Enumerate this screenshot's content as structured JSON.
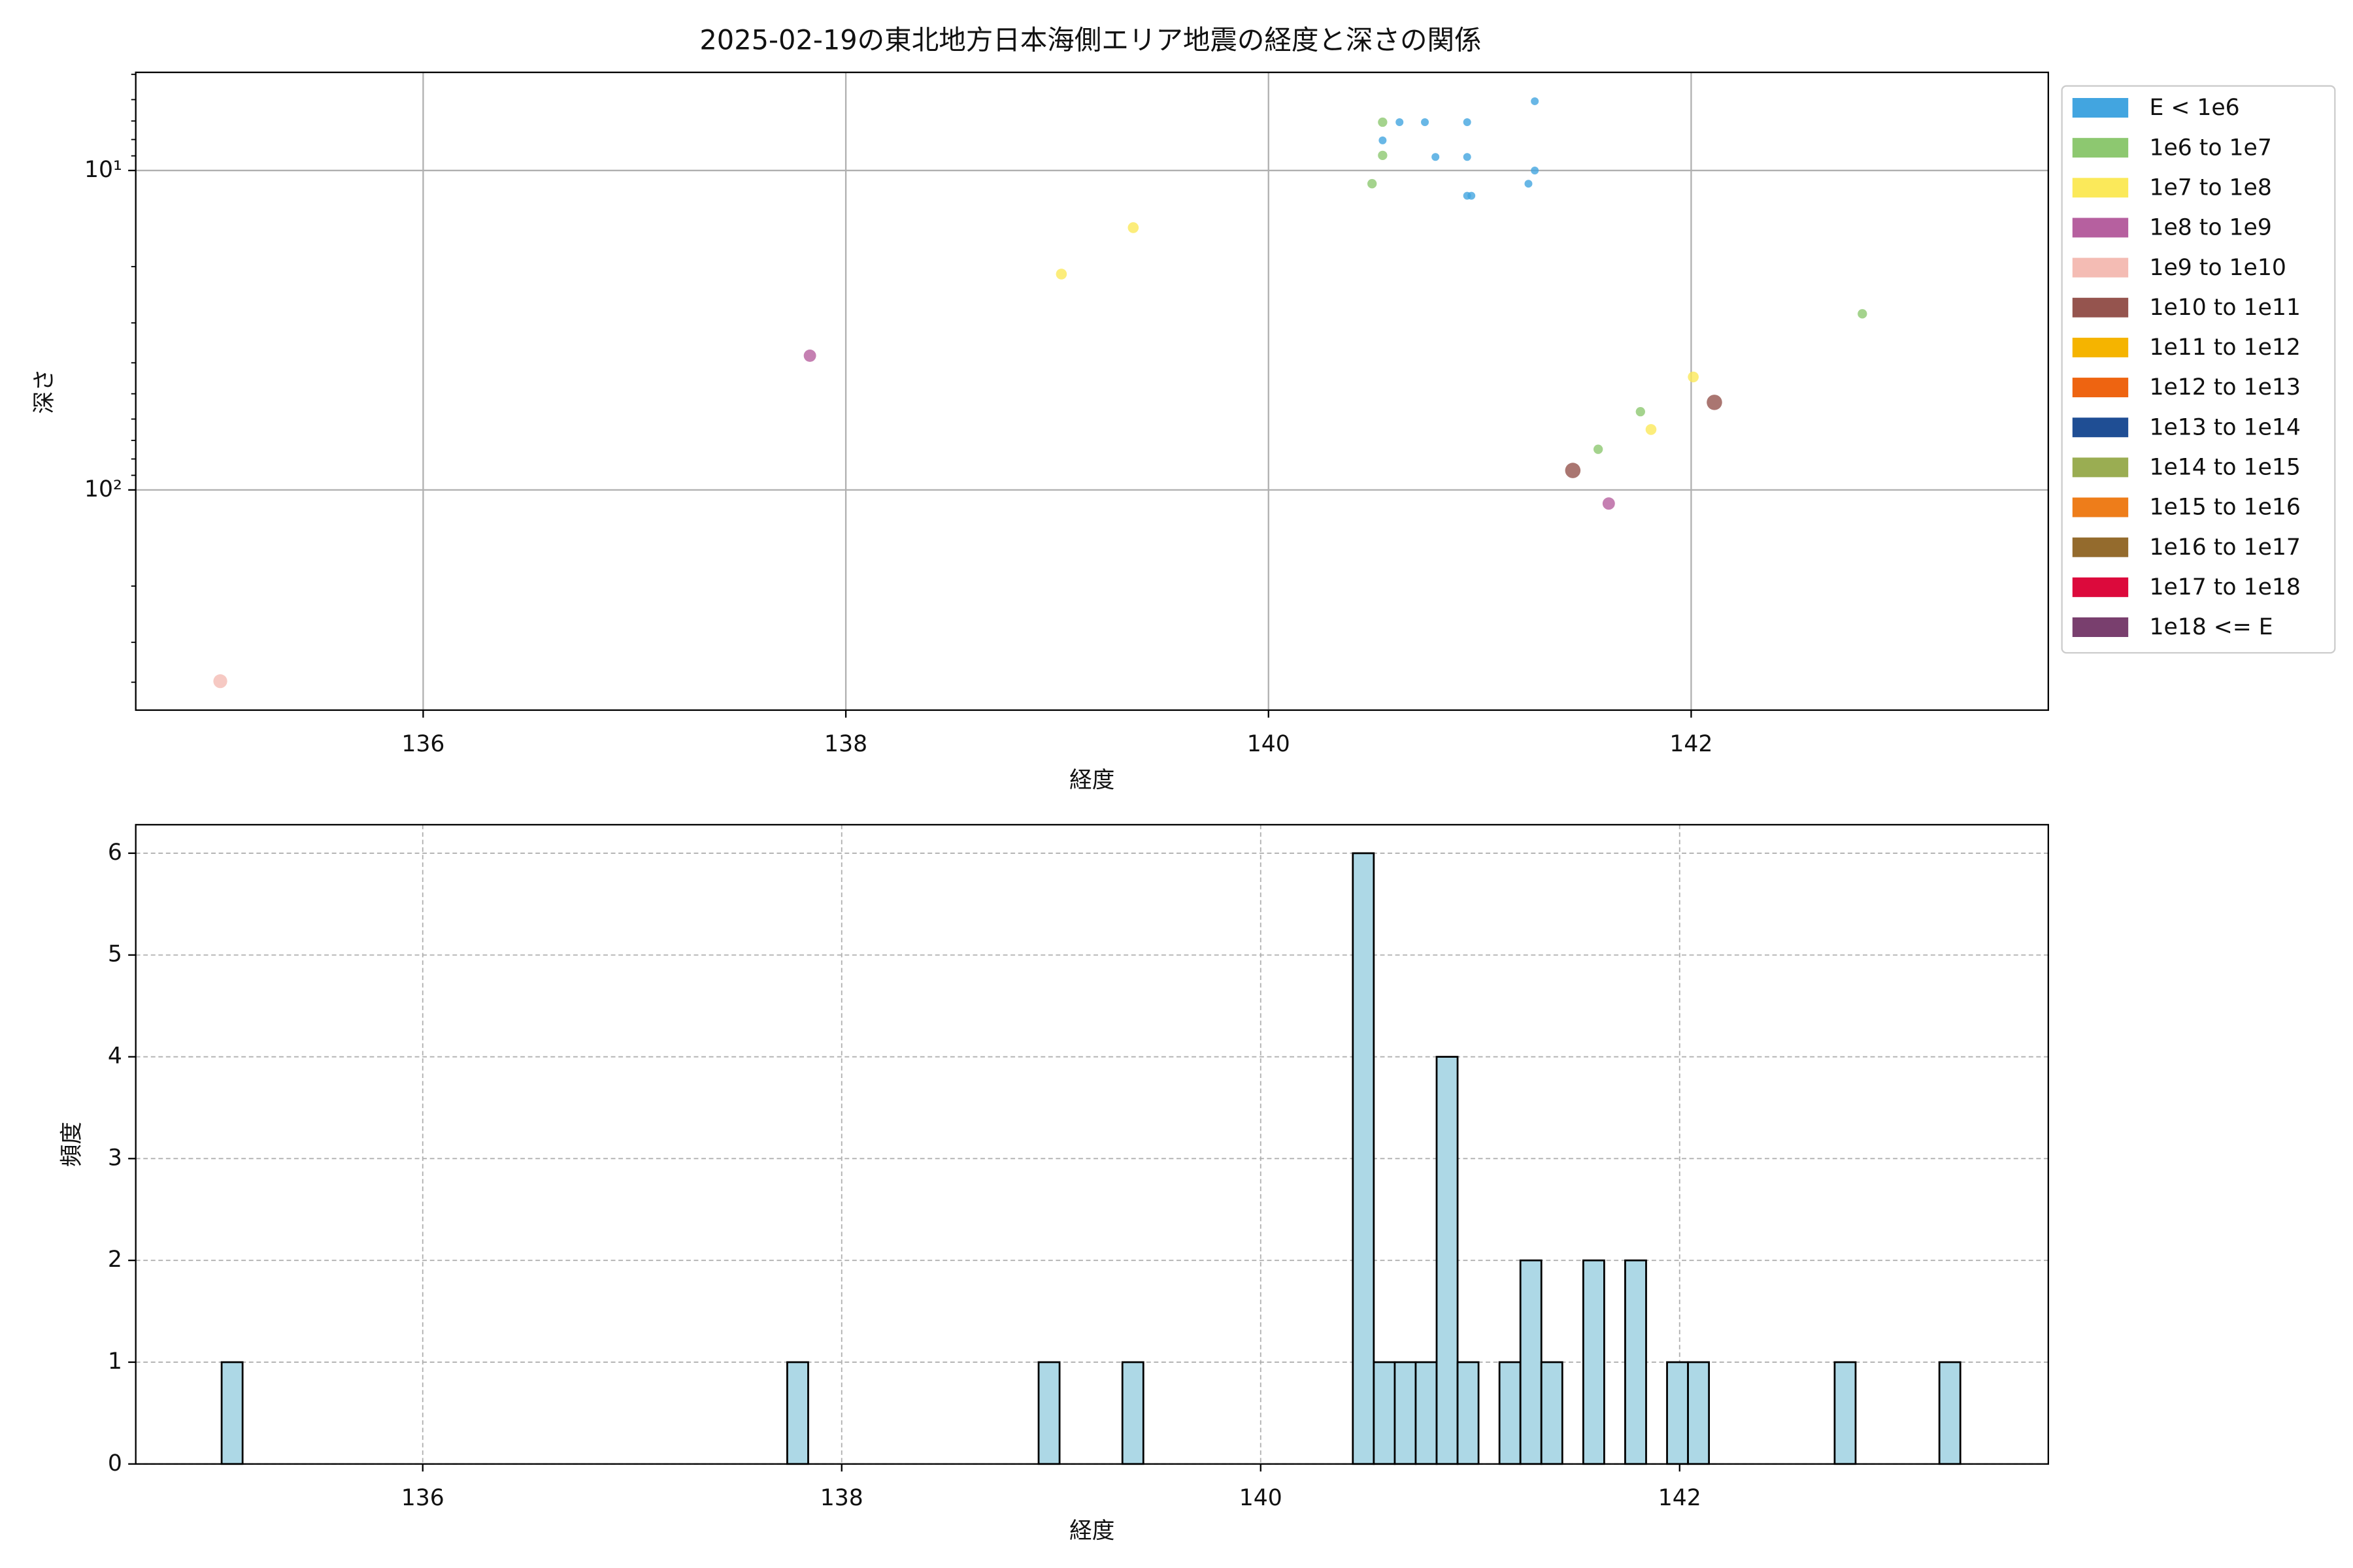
{
  "chart_data": [
    {
      "type": "scatter",
      "title": "2025-02-19の東北地方日本海側エリア地震の経度と深さの関係",
      "xlabel": "経度",
      "ylabel": "深さ",
      "xlim": [
        134.64,
        143.69
      ],
      "xticks": [
        136,
        138,
        140,
        142
      ],
      "ylim": [
        4.93,
        489
      ],
      "yscale": "log",
      "y_inverted": true,
      "yticks": [
        {
          "value": 10,
          "label": "10¹"
        },
        {
          "value": 100,
          "label": "10²"
        }
      ],
      "grid": true,
      "legend": "outside right",
      "series": [
        {
          "name": "E < 1e6",
          "color": "#42a5e0",
          "x": [
            140.62,
            140.74,
            140.94,
            141.26,
            140.54,
            140.79,
            140.94,
            141.26,
            141.23,
            140.94,
            140.96
          ],
          "values": [
            7.06,
            7.06,
            7.06,
            6.07,
            8.05,
            9.07,
            9.07,
            10,
            11.0,
            12.0,
            12.0
          ]
        },
        {
          "name": "1e6 to 1e7",
          "color": "#8dc870",
          "x": [
            140.54,
            140.54,
            140.49,
            142.81,
            141.76,
            141.56
          ],
          "values": [
            7.06,
            8.97,
            11.0,
            28.1,
            56.9,
            74.6
          ]
        },
        {
          "name": "1e7 to 1e8",
          "color": "#fbe95a",
          "x": [
            139.36,
            139.02,
            142.01,
            141.81
          ],
          "values": [
            15.1,
            21.1,
            44.3,
            64.7
          ]
        },
        {
          "name": "1e8 to 1e9",
          "color": "#b6609f",
          "x": [
            137.83,
            141.61
          ],
          "values": [
            38.0,
            110.3
          ]
        },
        {
          "name": "1e9 to 1e10",
          "color": "#f4bcb4",
          "x": [
            135.04
          ],
          "values": [
            397
          ]
        },
        {
          "name": "1e10 to 1e11",
          "color": "#95544e",
          "x": [
            141.44,
            142.11
          ],
          "values": [
            86.9,
            53.2
          ]
        },
        {
          "name": "1e11 to 1e12",
          "color": "#f5b400",
          "x": [],
          "values": []
        },
        {
          "name": "1e12 to 1e13",
          "color": "#ee6411",
          "x": [],
          "values": []
        },
        {
          "name": "1e13 to 1e14",
          "color": "#1f4e94",
          "x": [],
          "values": []
        },
        {
          "name": "1e14 to 1e15",
          "color": "#9aad52",
          "x": [],
          "values": []
        },
        {
          "name": "1e15 to 1e16",
          "color": "#ee7d1a",
          "x": [],
          "values": []
        },
        {
          "name": "1e16 to 1e17",
          "color": "#946b2d",
          "x": [],
          "values": []
        },
        {
          "name": "1e17 to 1e18",
          "color": "#dc0a3c",
          "x": [],
          "values": []
        },
        {
          "name": "1e18 <= E",
          "color": "#793f6e",
          "x": [],
          "values": []
        }
      ]
    },
    {
      "type": "histogram",
      "xlabel": "経度",
      "ylabel": "頻度",
      "xlim": [
        134.63,
        143.76
      ],
      "xticks": [
        136,
        138,
        140,
        142
      ],
      "ylim": [
        0,
        6.28
      ],
      "yticks": [
        0,
        1,
        2,
        3,
        4,
        5,
        6
      ],
      "grid": "dashed",
      "color": "#add8e6",
      "edgecolor": "#000000",
      "bins": [
        135.04,
        135.14,
        135.24,
        135.34,
        135.44,
        135.54,
        135.64,
        135.74,
        135.84,
        135.94,
        136.04,
        136.14,
        136.24,
        136.34,
        136.44,
        136.54,
        136.64,
        136.74,
        136.84,
        136.94,
        137.04,
        137.14,
        137.24,
        137.34,
        137.44,
        137.54,
        137.64,
        137.74,
        137.84,
        137.94,
        138.04,
        138.14,
        138.24,
        138.34,
        138.44,
        138.54,
        138.64,
        138.74,
        138.84,
        138.94,
        139.04,
        139.14,
        139.24,
        139.34,
        139.44,
        139.54,
        139.64,
        139.74,
        139.84,
        139.94,
        140.04,
        140.14,
        140.24,
        140.34,
        140.44,
        140.54,
        140.64,
        140.74,
        140.84,
        140.94,
        141.04,
        141.14,
        141.24,
        141.34,
        141.44,
        141.54,
        141.64,
        141.74,
        141.84,
        141.94,
        142.04,
        142.14,
        142.24,
        142.34,
        142.44,
        142.54,
        142.64,
        142.74,
        142.84,
        142.94,
        143.04,
        143.14,
        143.24,
        143.34
      ],
      "values": [
        1,
        0,
        0,
        0,
        0,
        0,
        0,
        0,
        0,
        0,
        0,
        0,
        0,
        0,
        0,
        0,
        0,
        0,
        0,
        0,
        0,
        0,
        0,
        0,
        0,
        0,
        0,
        1,
        0,
        0,
        0,
        0,
        0,
        0,
        0,
        0,
        0,
        0,
        0,
        1,
        0,
        0,
        0,
        1,
        0,
        0,
        0,
        0,
        0,
        0,
        0,
        0,
        0,
        0,
        6,
        1,
        1,
        1,
        4,
        1,
        0,
        1,
        2,
        1,
        0,
        2,
        0,
        2,
        0,
        1,
        1,
        0,
        0,
        0,
        0,
        0,
        0,
        1,
        0,
        0,
        0,
        0,
        1
      ]
    }
  ]
}
